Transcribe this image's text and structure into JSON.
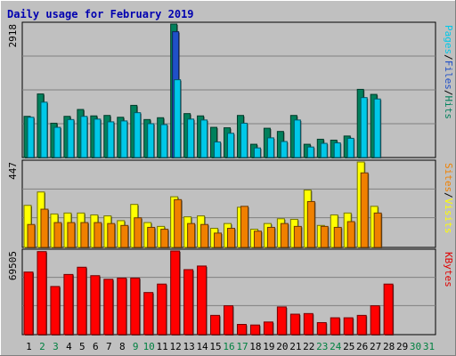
{
  "chart_data": [
    {
      "type": "bar",
      "title": "Daily usage for February 2019",
      "ymax_label": "2918",
      "ymax": 2918,
      "ylim": [
        0,
        2918
      ],
      "grid": true,
      "categories": [
        "1",
        "2",
        "3",
        "4",
        "5",
        "6",
        "7",
        "8",
        "9",
        "10",
        "11",
        "12",
        "13",
        "14",
        "15",
        "16",
        "17",
        "18",
        "19",
        "20",
        "21",
        "22",
        "23",
        "24",
        "25",
        "26",
        "27",
        "28",
        "29",
        "30",
        "31"
      ],
      "weekend_categories": [
        "2",
        "3",
        "9",
        "10",
        "16",
        "17",
        "23",
        "24",
        "30",
        "31"
      ],
      "legend": [
        "Pages",
        "/",
        "Files",
        "/",
        "Hits"
      ],
      "legend_colors": [
        "#00c8e8",
        "#000000",
        "#2050c8",
        "#000000",
        "#00805c"
      ],
      "series": [
        {
          "name": "Hits",
          "color": "#00805c",
          "values": [
            900,
            1390,
            750,
            900,
            1050,
            910,
            920,
            880,
            1140,
            830,
            870,
            2918,
            960,
            910,
            660,
            650,
            920,
            290,
            640,
            570,
            920,
            290,
            400,
            380,
            470,
            1490,
            1380,
            0,
            0,
            0,
            0
          ]
        },
        {
          "name": "Files",
          "color": "#2050c8",
          "values": [
            0,
            0,
            0,
            0,
            0,
            0,
            0,
            0,
            0,
            0,
            0,
            2750,
            0,
            0,
            0,
            0,
            0,
            0,
            0,
            0,
            0,
            0,
            0,
            0,
            0,
            0,
            0,
            0,
            0,
            0,
            0
          ]
        },
        {
          "name": "Pages",
          "color": "#00c8e8",
          "values": [
            880,
            1210,
            660,
            830,
            900,
            840,
            780,
            800,
            980,
            740,
            720,
            1700,
            840,
            820,
            340,
            530,
            750,
            210,
            430,
            350,
            820,
            230,
            310,
            320,
            420,
            1310,
            1280,
            0,
            0,
            0,
            0
          ]
        }
      ]
    },
    {
      "type": "bar",
      "ymax_label": "447",
      "ymax": 447,
      "ylim": [
        0,
        447
      ],
      "grid": true,
      "legend": [
        "Sites",
        "/",
        "Visits"
      ],
      "legend_colors": [
        "#f08000",
        "#000000",
        "#ffff00"
      ],
      "series": [
        {
          "name": "Visits",
          "color": "#ffff00",
          "values": [
            220,
            290,
            175,
            180,
            180,
            170,
            165,
            140,
            225,
            130,
            110,
            265,
            160,
            165,
            100,
            125,
            210,
            95,
            125,
            150,
            147,
            300,
            115,
            170,
            180,
            447,
            215,
            0,
            0,
            0,
            0
          ]
        },
        {
          "name": "Sites",
          "color": "#f08000",
          "values": [
            120,
            200,
            130,
            130,
            130,
            130,
            125,
            115,
            155,
            105,
            95,
            250,
            125,
            120,
            75,
            100,
            215,
            85,
            105,
            125,
            110,
            240,
            110,
            105,
            135,
            390,
            180,
            0,
            0,
            0,
            0
          ]
        }
      ]
    },
    {
      "type": "bar",
      "ymax_label": "69505",
      "ymax": 69505,
      "ylim": [
        0,
        69505
      ],
      "grid": true,
      "legend": [
        "KBytes"
      ],
      "legend_colors": [
        "#e00000"
      ],
      "series": [
        {
          "name": "KBytes",
          "color": "#ff0000",
          "values": [
            52000,
            69000,
            40000,
            50000,
            56000,
            49000,
            46000,
            47000,
            47000,
            35000,
            42000,
            69505,
            54000,
            57000,
            16000,
            24000,
            8500,
            8000,
            10500,
            23000,
            17000,
            17500,
            10000,
            14000,
            14000,
            16000,
            24000,
            42000,
            0,
            0,
            0
          ]
        }
      ]
    }
  ]
}
